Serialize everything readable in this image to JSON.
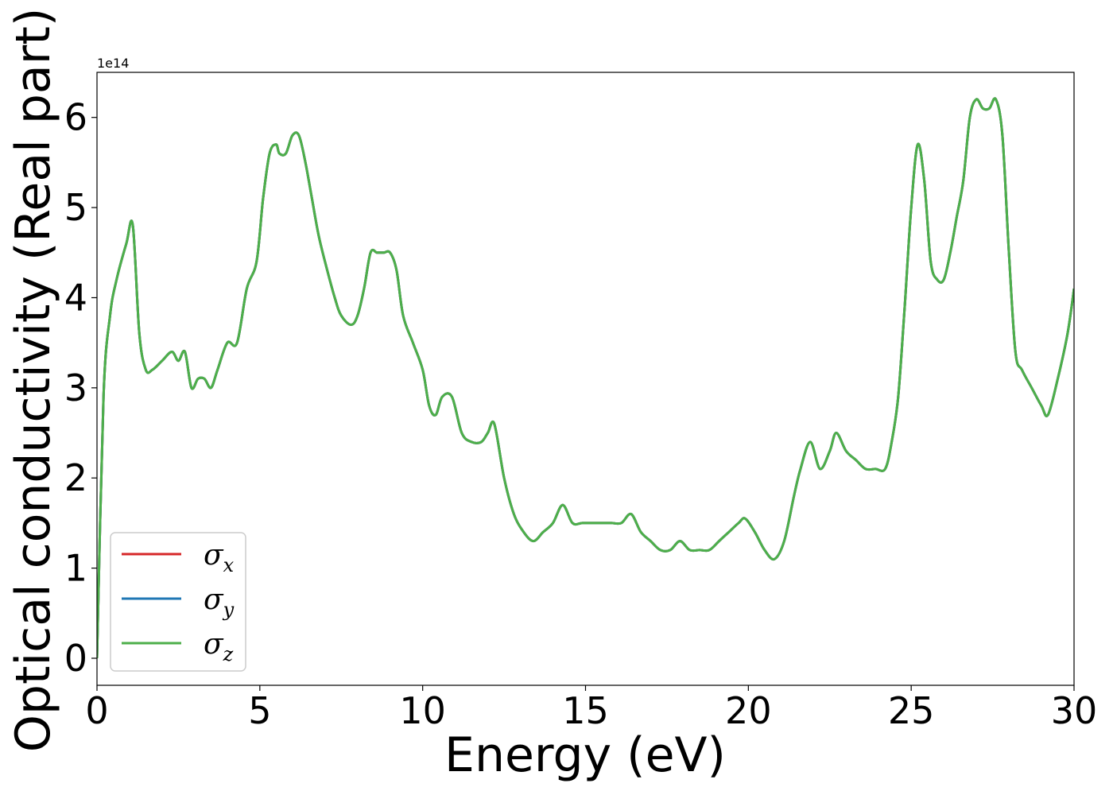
{
  "chart_data": {
    "type": "line",
    "xlabel": "Energy (eV)",
    "ylabel": "Optical conductivity (Real part)",
    "xlim": [
      0,
      30
    ],
    "ylim": [
      -0.3,
      6.5
    ],
    "y_multiplier_label": "1e14",
    "x_ticks": [
      0,
      5,
      10,
      15,
      20,
      25,
      30
    ],
    "y_ticks": [
      0,
      1,
      2,
      3,
      4,
      5,
      6
    ],
    "grid": false,
    "legend_position": "lower-left",
    "colors": {
      "sigma_x": "#d62728",
      "sigma_y": "#1f77b4",
      "sigma_z": "#4daf4a"
    },
    "legend": [
      {
        "symbol": "σ",
        "subscript": "x",
        "color": "#d62728"
      },
      {
        "symbol": "σ",
        "subscript": "y",
        "color": "#1f77b4"
      },
      {
        "symbol": "σ",
        "subscript": "z",
        "color": "#4daf4a"
      }
    ],
    "x": [
      0.0,
      0.2,
      0.4,
      0.6,
      0.9,
      1.1,
      1.3,
      1.5,
      1.7,
      2.0,
      2.3,
      2.5,
      2.7,
      2.9,
      3.1,
      3.3,
      3.5,
      3.7,
      4.0,
      4.3,
      4.6,
      4.9,
      5.1,
      5.3,
      5.5,
      5.6,
      5.8,
      6.0,
      6.2,
      6.4,
      6.6,
      6.8,
      7.0,
      7.3,
      7.5,
      7.8,
      8.0,
      8.2,
      8.4,
      8.6,
      8.8,
      9.0,
      9.2,
      9.4,
      9.7,
      10.0,
      10.2,
      10.4,
      10.6,
      10.9,
      11.2,
      11.5,
      11.8,
      12.0,
      12.2,
      12.5,
      12.8,
      13.1,
      13.4,
      13.7,
      14.0,
      14.3,
      14.6,
      14.9,
      15.2,
      15.5,
      15.8,
      16.1,
      16.4,
      16.7,
      17.0,
      17.3,
      17.6,
      17.9,
      18.2,
      18.5,
      18.8,
      19.1,
      19.4,
      19.7,
      19.9,
      20.2,
      20.5,
      20.8,
      21.1,
      21.4,
      21.6,
      21.9,
      22.2,
      22.5,
      22.7,
      23.0,
      23.3,
      23.6,
      23.9,
      24.2,
      24.4,
      24.6,
      24.8,
      25.0,
      25.2,
      25.4,
      25.6,
      25.8,
      26.0,
      26.2,
      26.4,
      26.6,
      26.8,
      27.0,
      27.2,
      27.4,
      27.6,
      27.8,
      28.0,
      28.2,
      28.4,
      28.7,
      29.0,
      29.2,
      29.5,
      29.8,
      30.0
    ],
    "series": [
      {
        "name": "σx",
        "values": [
          0.0,
          2.9,
          3.8,
          4.2,
          4.6,
          4.8,
          3.6,
          3.2,
          3.2,
          3.3,
          3.4,
          3.3,
          3.4,
          3.0,
          3.1,
          3.1,
          3.0,
          3.2,
          3.5,
          3.5,
          4.1,
          4.4,
          5.1,
          5.6,
          5.7,
          5.6,
          5.6,
          5.8,
          5.8,
          5.5,
          5.1,
          4.7,
          4.4,
          4.0,
          3.8,
          3.7,
          3.8,
          4.1,
          4.5,
          4.5,
          4.5,
          4.5,
          4.3,
          3.8,
          3.5,
          3.2,
          2.8,
          2.7,
          2.9,
          2.9,
          2.5,
          2.4,
          2.4,
          2.5,
          2.6,
          2.0,
          1.6,
          1.4,
          1.3,
          1.4,
          1.5,
          1.7,
          1.5,
          1.5,
          1.5,
          1.5,
          1.5,
          1.5,
          1.6,
          1.4,
          1.3,
          1.2,
          1.2,
          1.3,
          1.2,
          1.2,
          1.2,
          1.3,
          1.4,
          1.5,
          1.55,
          1.4,
          1.2,
          1.1,
          1.3,
          1.8,
          2.1,
          2.4,
          2.1,
          2.3,
          2.5,
          2.3,
          2.2,
          2.1,
          2.1,
          2.1,
          2.4,
          2.9,
          3.9,
          5.0,
          5.7,
          5.3,
          4.4,
          4.2,
          4.2,
          4.5,
          4.9,
          5.3,
          6.0,
          6.2,
          6.1,
          6.1,
          6.2,
          5.8,
          4.5,
          3.4,
          3.2,
          3.0,
          2.8,
          2.7,
          3.1,
          3.6,
          4.1
        ]
      },
      {
        "name": "σy",
        "values": [
          0.0,
          2.9,
          3.8,
          4.2,
          4.6,
          4.8,
          3.6,
          3.2,
          3.2,
          3.3,
          3.4,
          3.3,
          3.4,
          3.0,
          3.1,
          3.1,
          3.0,
          3.2,
          3.5,
          3.5,
          4.1,
          4.4,
          5.1,
          5.6,
          5.7,
          5.6,
          5.6,
          5.8,
          5.8,
          5.5,
          5.1,
          4.7,
          4.4,
          4.0,
          3.8,
          3.7,
          3.8,
          4.1,
          4.5,
          4.5,
          4.5,
          4.5,
          4.3,
          3.8,
          3.5,
          3.2,
          2.8,
          2.7,
          2.9,
          2.9,
          2.5,
          2.4,
          2.4,
          2.5,
          2.6,
          2.0,
          1.6,
          1.4,
          1.3,
          1.4,
          1.5,
          1.7,
          1.5,
          1.5,
          1.5,
          1.5,
          1.5,
          1.5,
          1.6,
          1.4,
          1.3,
          1.2,
          1.2,
          1.3,
          1.2,
          1.2,
          1.2,
          1.3,
          1.4,
          1.5,
          1.55,
          1.4,
          1.2,
          1.1,
          1.3,
          1.8,
          2.1,
          2.4,
          2.1,
          2.3,
          2.5,
          2.3,
          2.2,
          2.1,
          2.1,
          2.1,
          2.4,
          2.9,
          3.9,
          5.0,
          5.7,
          5.3,
          4.4,
          4.2,
          4.2,
          4.5,
          4.9,
          5.3,
          6.0,
          6.2,
          6.1,
          6.1,
          6.2,
          5.8,
          4.5,
          3.4,
          3.2,
          3.0,
          2.8,
          2.7,
          3.1,
          3.6,
          4.1
        ]
      },
      {
        "name": "σz",
        "values": [
          0.0,
          2.9,
          3.8,
          4.2,
          4.6,
          4.8,
          3.6,
          3.2,
          3.2,
          3.3,
          3.4,
          3.3,
          3.4,
          3.0,
          3.1,
          3.1,
          3.0,
          3.2,
          3.5,
          3.5,
          4.1,
          4.4,
          5.1,
          5.6,
          5.7,
          5.6,
          5.6,
          5.8,
          5.8,
          5.5,
          5.1,
          4.7,
          4.4,
          4.0,
          3.8,
          3.7,
          3.8,
          4.1,
          4.5,
          4.5,
          4.5,
          4.5,
          4.3,
          3.8,
          3.5,
          3.2,
          2.8,
          2.7,
          2.9,
          2.9,
          2.5,
          2.4,
          2.4,
          2.5,
          2.6,
          2.0,
          1.6,
          1.4,
          1.3,
          1.4,
          1.5,
          1.7,
          1.5,
          1.5,
          1.5,
          1.5,
          1.5,
          1.5,
          1.6,
          1.4,
          1.3,
          1.2,
          1.2,
          1.3,
          1.2,
          1.2,
          1.2,
          1.3,
          1.4,
          1.5,
          1.55,
          1.4,
          1.2,
          1.1,
          1.3,
          1.8,
          2.1,
          2.4,
          2.1,
          2.3,
          2.5,
          2.3,
          2.2,
          2.1,
          2.1,
          2.1,
          2.4,
          2.9,
          3.9,
          5.0,
          5.7,
          5.3,
          4.4,
          4.2,
          4.2,
          4.5,
          4.9,
          5.3,
          6.0,
          6.2,
          6.1,
          6.1,
          6.2,
          5.8,
          4.5,
          3.4,
          3.2,
          3.0,
          2.8,
          2.7,
          3.1,
          3.6,
          4.1
        ]
      }
    ]
  }
}
